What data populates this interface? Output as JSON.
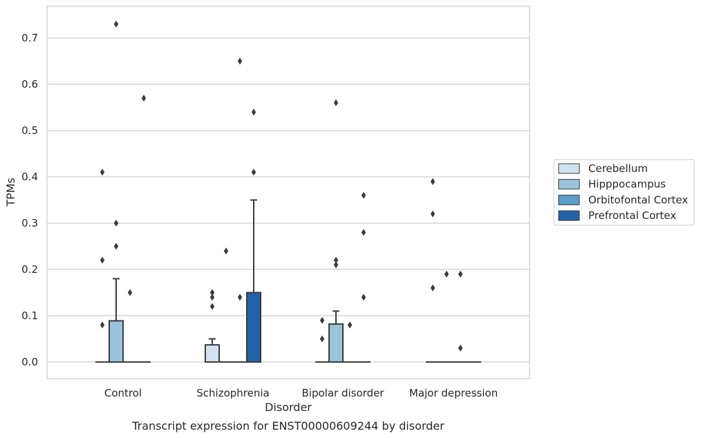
{
  "caption": "Transcript expression for ENST00000609244 by disorder",
  "chart_data": {
    "type": "box",
    "xlabel": "Disorder",
    "ylabel": "TPMs",
    "ylim": [
      -0.035,
      0.77
    ],
    "yticks": [
      "0.0",
      "0.1",
      "0.2",
      "0.3",
      "0.4",
      "0.5",
      "0.6",
      "0.7"
    ],
    "grid": "horizontal",
    "legend_position": "right",
    "categories": [
      "Control",
      "Schizophrenia",
      "Bipolar disorder",
      "Major depression"
    ],
    "series": [
      {
        "name": "Cerebellum",
        "color": "#d1e2f2",
        "boxes": [
          {
            "min": 0,
            "q1": 0,
            "median": 0,
            "q3": 0,
            "max": 0,
            "outliers": [
              0.08,
              0.22,
              0.41
            ]
          },
          {
            "min": 0,
            "q1": 0,
            "median": 0,
            "q3": 0.037,
            "max": 0.05,
            "outliers": [
              0.12,
              0.14,
              0.15
            ]
          },
          {
            "min": 0,
            "q1": 0,
            "median": 0,
            "q3": 0,
            "max": 0,
            "outliers": [
              0.05,
              0.09
            ]
          },
          {
            "min": 0,
            "q1": 0,
            "median": 0,
            "q3": 0,
            "max": 0,
            "outliers": [
              0.16,
              0.32,
              0.39
            ]
          }
        ]
      },
      {
        "name": "Hipppocampus",
        "color": "#9ac4dd",
        "boxes": [
          {
            "min": 0,
            "q1": 0,
            "median": 0,
            "q3": 0.089,
            "max": 0.18,
            "outliers": [
              0.25,
              0.3,
              0.73
            ]
          },
          {
            "min": 0,
            "q1": 0,
            "median": 0,
            "q3": 0,
            "max": 0,
            "outliers": [
              0.24
            ]
          },
          {
            "min": 0,
            "q1": 0,
            "median": 0,
            "q3": 0.082,
            "max": 0.11,
            "outliers": [
              0.21,
              0.22,
              0.56
            ]
          },
          {
            "min": 0,
            "q1": 0,
            "median": 0,
            "q3": 0,
            "max": 0,
            "outliers": [
              0.19
            ]
          }
        ]
      },
      {
        "name": "Orbitofontal Cortex",
        "color": "#5a9ec9",
        "boxes": [
          {
            "min": 0,
            "q1": 0,
            "median": 0,
            "q3": 0,
            "max": 0,
            "outliers": [
              0.15
            ]
          },
          {
            "min": 0,
            "q1": 0,
            "median": 0,
            "q3": 0,
            "max": 0,
            "outliers": [
              0.14,
              0.65
            ]
          },
          {
            "min": 0,
            "q1": 0,
            "median": 0,
            "q3": 0,
            "max": 0,
            "outliers": [
              0.08
            ]
          },
          {
            "min": 0,
            "q1": 0,
            "median": 0,
            "q3": 0,
            "max": 0,
            "outliers": [
              0.03,
              0.19
            ]
          }
        ]
      },
      {
        "name": "Prefrontal Cortex",
        "color": "#2462a8",
        "boxes": [
          {
            "min": 0,
            "q1": 0,
            "median": 0,
            "q3": 0,
            "max": 0,
            "outliers": [
              0.57
            ]
          },
          {
            "min": 0,
            "q1": 0,
            "median": 0,
            "q3": 0.15,
            "max": 0.35,
            "outliers": [
              0.41,
              0.54
            ]
          },
          {
            "min": 0,
            "q1": 0,
            "median": 0,
            "q3": 0,
            "max": 0,
            "outliers": [
              0.14,
              0.28,
              0.36
            ]
          },
          {
            "min": 0,
            "q1": 0,
            "median": 0,
            "q3": 0,
            "max": 0,
            "outliers": []
          }
        ]
      }
    ]
  }
}
